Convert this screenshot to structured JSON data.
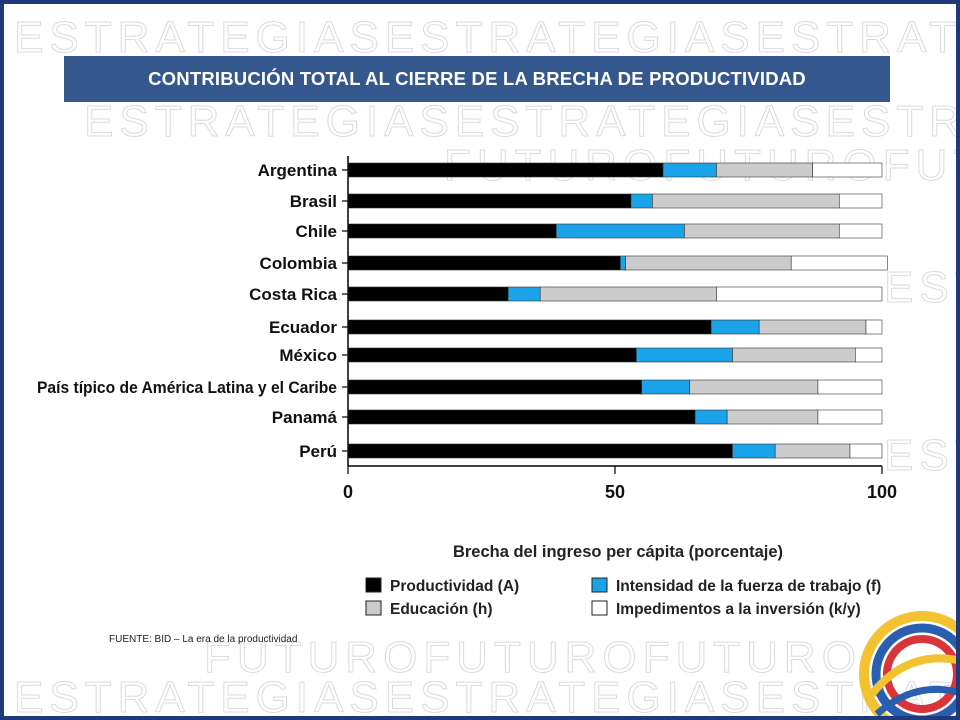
{
  "slide": {
    "title": "CONTRIBUCIÓN TOTAL AL CIERRE DE LA BRECHA DE PRODUCTIVIDAD",
    "source": "FUENTE: BID – La era de la productividad",
    "watermark_words": [
      "ESTRATEGIAS",
      "FUTURO"
    ],
    "accent_color": "#34578d",
    "border_color": "#1f3a7a"
  },
  "chart_data": {
    "type": "bar",
    "orientation": "horizontal",
    "stacked": true,
    "title": "",
    "xlabel": "Brecha del ingreso per cápita (porcentaje)",
    "ylabel": "",
    "xlim": [
      0,
      100
    ],
    "xticks": [
      0,
      50,
      100
    ],
    "xtick_labels": [
      "0",
      "50",
      "100"
    ],
    "grid": false,
    "legend_position": "bottom-right",
    "categories": [
      "Argentina",
      "Brasil",
      "Chile",
      "Colombia",
      "Costa Rica",
      "Ecuador",
      "México",
      "País típico de América Latina y el Caribe",
      "Panamá",
      "Perú"
    ],
    "series": [
      {
        "name": "Productividad (A)",
        "color": "#000000",
        "values": [
          59,
          53,
          39,
          51,
          30,
          68,
          54,
          55,
          65,
          72
        ]
      },
      {
        "name": "Intensidad de la fuerza de trabajo (f)",
        "color": "#1aa3e8",
        "values": [
          10,
          4,
          24,
          1,
          6,
          9,
          18,
          9,
          6,
          8
        ]
      },
      {
        "name": "Educación (h)",
        "color": "#cccccc",
        "values": [
          18,
          35,
          29,
          31,
          33,
          20,
          23,
          24,
          17,
          14
        ]
      },
      {
        "name": "Impedimentos a la inversión (k/y)",
        "color": "#ffffff",
        "values": [
          13,
          8,
          8,
          18,
          31,
          3,
          5,
          12,
          12,
          6
        ]
      }
    ]
  }
}
